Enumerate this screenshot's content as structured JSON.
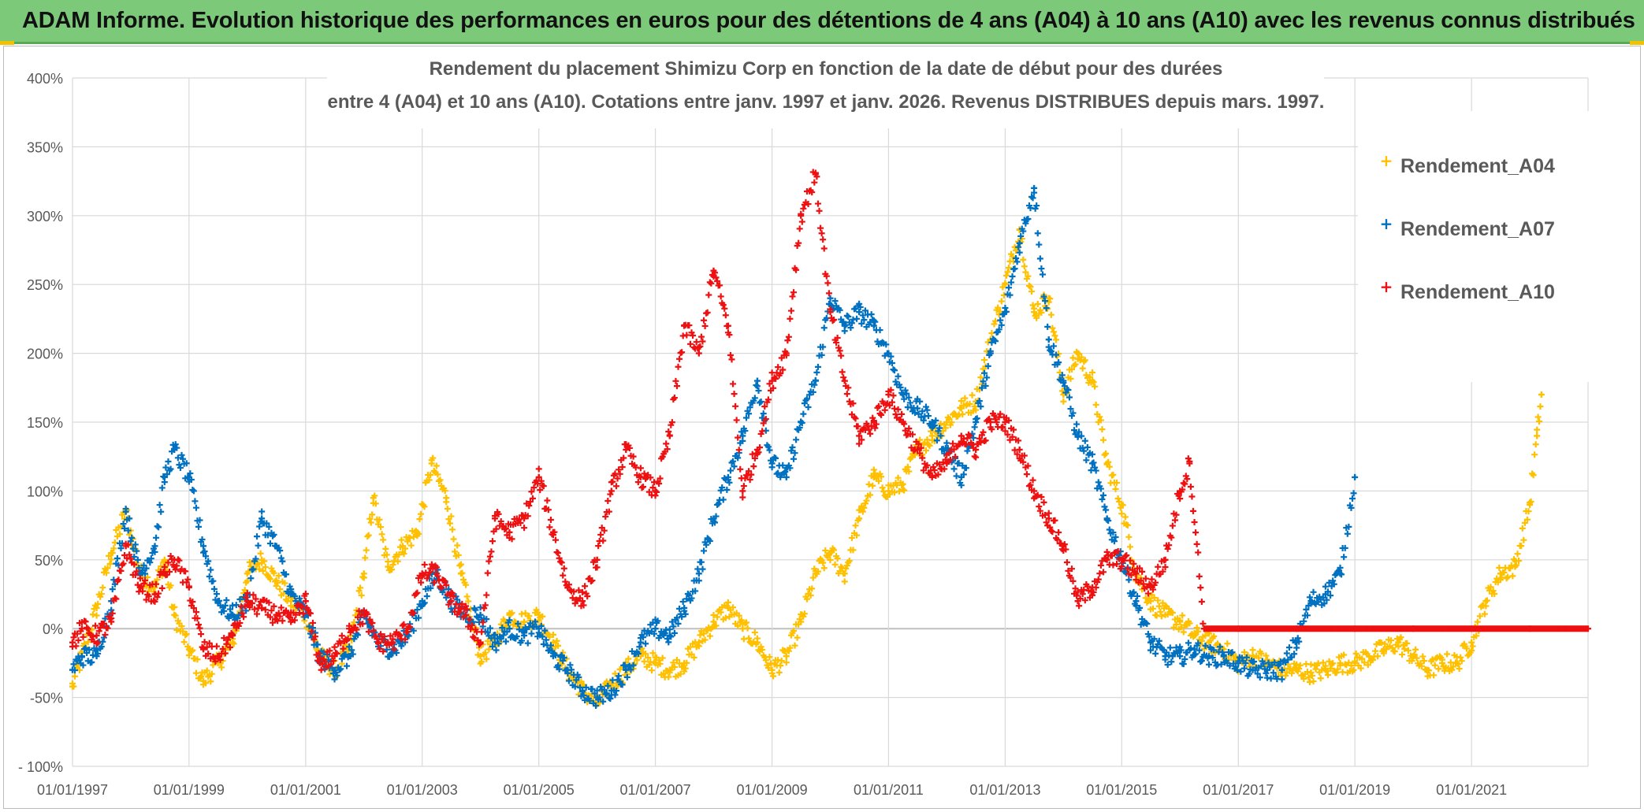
{
  "banner": {
    "title": "ADAM Informe. Evolution historique des performances en euros pour des détentions de 4 ans (A04) à 10 ans (A10) avec les revenus connus distribués"
  },
  "colors": {
    "banner_bg": "#7dc97a",
    "a04": "#ffc000",
    "a07": "#0070c0",
    "a10": "#ee1111",
    "grid": "#d9d9d9",
    "zero_line": "#bfbfbf"
  },
  "chart_data": {
    "type": "scatter",
    "title_line1": "Rendement du placement Shimizu Corp en fonction de la date de début pour des durées",
    "title_line2": "entre 4 (A04) et 10 ans (A10). Cotations entre janv. 1997 et janv. 2026. Revenus DISTRIBUES depuis mars. 1997.",
    "marker": "+",
    "grid": true,
    "legend_position": "top-right",
    "xlim": [
      "1997-01-01",
      "2023-01-01"
    ],
    "ylim": [
      -100,
      400
    ],
    "y_ticks": [
      -100,
      -50,
      0,
      50,
      100,
      150,
      200,
      250,
      300,
      350,
      400
    ],
    "y_tick_labels": [
      "- 100%",
      "-50%",
      "0%",
      "50%",
      "100%",
      "150%",
      "200%",
      "250%",
      "300%",
      "350%",
      "400%"
    ],
    "x_ticks": [
      "1997-01-01",
      "1999-01-01",
      "2001-01-01",
      "2003-01-01",
      "2005-01-01",
      "2007-01-01",
      "2009-01-01",
      "2011-01-01",
      "2013-01-01",
      "2015-01-01",
      "2017-01-01",
      "2019-01-01",
      "2021-01-01"
    ],
    "x_tick_labels": [
      "01/01/1997",
      "01/01/1999",
      "01/01/2001",
      "01/01/2003",
      "01/01/2005",
      "01/01/2007",
      "01/01/2009",
      "01/01/2011",
      "01/01/2013",
      "01/01/2015",
      "01/01/2017",
      "01/01/2019",
      "01/01/2021"
    ],
    "series": [
      {
        "name": "Rendement_A04",
        "color": "#ffc000",
        "x": [
          "1997-01-01",
          "1997-03-01",
          "1997-06-01",
          "1997-09-01",
          "1997-12-01",
          "1998-03-01",
          "1998-06-01",
          "1998-08-01",
          "1998-10-01",
          "1999-01-01",
          "1999-04-01",
          "1999-07-01",
          "1999-10-01",
          "2000-01-01",
          "2000-04-01",
          "2000-07-01",
          "2000-10-01",
          "2001-01-01",
          "2001-04-01",
          "2001-07-01",
          "2001-10-01",
          "2002-01-01",
          "2002-03-01",
          "2002-06-01",
          "2002-09-01",
          "2002-12-01",
          "2003-03-01",
          "2003-06-01",
          "2003-09-01",
          "2004-01-01",
          "2004-04-01",
          "2004-07-01",
          "2004-10-01",
          "2005-01-01",
          "2005-04-01",
          "2005-07-01",
          "2005-10-01",
          "2006-01-01",
          "2006-04-01",
          "2006-07-01",
          "2006-10-01",
          "2007-01-01",
          "2007-04-01",
          "2007-07-01",
          "2007-10-01",
          "2008-01-01",
          "2008-04-01",
          "2008-07-01",
          "2008-10-01",
          "2009-01-01",
          "2009-04-01",
          "2009-07-01",
          "2009-10-01",
          "2010-01-01",
          "2010-04-01",
          "2010-07-01",
          "2010-10-01",
          "2011-01-01",
          "2011-04-01",
          "2011-07-01",
          "2011-10-01",
          "2012-01-01",
          "2012-04-01",
          "2012-07-01",
          "2012-10-01",
          "2013-01-01",
          "2013-04-01",
          "2013-07-01",
          "2013-10-01",
          "2014-01-01",
          "2014-04-01",
          "2014-07-01",
          "2014-10-01",
          "2015-01-01",
          "2015-04-01",
          "2015-07-01",
          "2015-10-01",
          "2016-01-01",
          "2016-04-01",
          "2016-07-01",
          "2016-10-01",
          "2017-01-01",
          "2017-04-01",
          "2017-07-01",
          "2017-10-01",
          "2018-01-01",
          "2018-04-01",
          "2018-07-01",
          "2018-10-01",
          "2019-01-01",
          "2019-04-01",
          "2019-07-01",
          "2019-10-01",
          "2020-01-01",
          "2020-04-01",
          "2020-07-01",
          "2020-10-01",
          "2021-01-01",
          "2021-04-01",
          "2021-07-01",
          "2021-10-01",
          "2022-01-01",
          "2022-02-15",
          "2022-03-15"
        ],
        "y": [
          -42,
          -20,
          15,
          55,
          85,
          40,
          30,
          50,
          10,
          -15,
          -38,
          -25,
          -10,
          40,
          50,
          35,
          20,
          10,
          -20,
          -30,
          -15,
          40,
          95,
          45,
          60,
          70,
          120,
          95,
          40,
          -20,
          -10,
          10,
          5,
          10,
          -10,
          -30,
          -45,
          -55,
          -40,
          -30,
          -20,
          -25,
          -30,
          -25,
          -10,
          5,
          15,
          0,
          -10,
          -30,
          -20,
          5,
          40,
          55,
          40,
          80,
          110,
          100,
          105,
          130,
          140,
          150,
          160,
          165,
          210,
          250,
          290,
          230,
          240,
          170,
          200,
          180,
          120,
          90,
          40,
          20,
          10,
          5,
          -5,
          -10,
          -15,
          -25,
          -20,
          -25,
          -30,
          -30,
          -32,
          -30,
          -25,
          -25,
          -20,
          -15,
          -10,
          -20,
          -30,
          -25,
          -25,
          -10,
          20,
          40,
          45,
          90,
          140,
          170
        ]
      },
      {
        "name": "Rendement_A07",
        "color": "#0070c0",
        "x": [
          "1997-01-01",
          "1997-03-01",
          "1997-06-01",
          "1997-09-01",
          "1997-12-01",
          "1998-03-01",
          "1998-06-01",
          "1998-08-01",
          "1998-10-01",
          "1999-01-01",
          "1999-04-01",
          "1999-07-01",
          "1999-10-01",
          "2000-01-01",
          "2000-04-01",
          "2000-07-01",
          "2000-10-01",
          "2001-01-01",
          "2001-04-01",
          "2001-07-01",
          "2001-10-01",
          "2002-01-01",
          "2002-04-01",
          "2002-07-01",
          "2002-10-01",
          "2003-01-01",
          "2003-04-01",
          "2003-07-01",
          "2003-10-01",
          "2004-01-01",
          "2004-04-01",
          "2004-07-01",
          "2004-10-01",
          "2005-01-01",
          "2005-04-01",
          "2005-07-01",
          "2005-10-01",
          "2006-01-01",
          "2006-04-01",
          "2006-07-01",
          "2006-10-01",
          "2007-01-01",
          "2007-04-01",
          "2007-07-01",
          "2007-10-01",
          "2008-01-01",
          "2008-04-01",
          "2008-07-01",
          "2008-10-01",
          "2009-01-01",
          "2009-04-01",
          "2009-07-01",
          "2009-10-01",
          "2010-01-01",
          "2010-04-01",
          "2010-07-01",
          "2010-10-01",
          "2011-01-01",
          "2011-04-01",
          "2011-07-01",
          "2011-10-01",
          "2012-01-01",
          "2012-04-01",
          "2012-07-01",
          "2012-10-01",
          "2013-01-01",
          "2013-04-01",
          "2013-07-01",
          "2013-10-01",
          "2014-01-01",
          "2014-04-01",
          "2014-07-01",
          "2014-10-01",
          "2015-01-01",
          "2015-04-01",
          "2015-07-01",
          "2015-10-01",
          "2016-01-01",
          "2016-04-01",
          "2016-07-01",
          "2016-10-01",
          "2017-01-01",
          "2017-04-01",
          "2017-07-01",
          "2017-10-01",
          "2018-01-01",
          "2018-04-01",
          "2018-07-01",
          "2018-10-01",
          "2019-01-01"
        ],
        "y": [
          -30,
          -20,
          -20,
          20,
          85,
          40,
          60,
          110,
          130,
          110,
          60,
          20,
          10,
          20,
          80,
          60,
          25,
          10,
          -20,
          -30,
          -20,
          10,
          -10,
          -15,
          -5,
          20,
          40,
          20,
          10,
          10,
          -10,
          0,
          -5,
          0,
          -20,
          -30,
          -45,
          -50,
          -45,
          -30,
          -10,
          0,
          -5,
          15,
          40,
          80,
          110,
          140,
          180,
          120,
          110,
          150,
          180,
          240,
          220,
          230,
          220,
          200,
          170,
          160,
          150,
          130,
          110,
          150,
          200,
          230,
          280,
          320,
          210,
          180,
          140,
          120,
          80,
          50,
          20,
          -10,
          -20,
          -20,
          -15,
          -20,
          -20,
          -25,
          -30,
          -30,
          -30,
          -10,
          20,
          25,
          40,
          110
        ]
      },
      {
        "name": "Rendement_A10",
        "color": "#ee1111",
        "x": [
          "1997-01-01",
          "1997-03-01",
          "1997-06-01",
          "1997-09-01",
          "1997-12-01",
          "1998-03-01",
          "1998-06-01",
          "1998-08-01",
          "1998-10-01",
          "1999-01-01",
          "1999-04-01",
          "1999-07-01",
          "1999-10-01",
          "2000-01-01",
          "2000-04-01",
          "2000-07-01",
          "2000-10-01",
          "2001-01-01",
          "2001-04-01",
          "2001-07-01",
          "2001-10-01",
          "2002-01-01",
          "2002-04-01",
          "2002-07-01",
          "2002-10-01",
          "2003-01-01",
          "2003-04-01",
          "2003-07-01",
          "2003-10-01",
          "2004-01-01",
          "2004-04-01",
          "2004-07-01",
          "2004-10-01",
          "2005-01-01",
          "2005-04-01",
          "2005-07-01",
          "2005-10-01",
          "2006-01-01",
          "2006-04-01",
          "2006-07-01",
          "2006-10-01",
          "2007-01-01",
          "2007-04-01",
          "2007-07-01",
          "2007-10-01",
          "2008-01-01",
          "2008-04-01",
          "2008-07-01",
          "2008-10-01",
          "2009-01-01",
          "2009-04-01",
          "2009-07-01",
          "2009-10-01",
          "2010-01-01",
          "2010-04-01",
          "2010-07-01",
          "2010-10-01",
          "2011-01-01",
          "2011-04-01",
          "2011-07-01",
          "2011-10-01",
          "2012-01-01",
          "2012-04-01",
          "2012-07-01",
          "2012-10-01",
          "2013-01-01",
          "2013-04-01",
          "2013-07-01",
          "2013-10-01",
          "2014-01-01",
          "2014-04-01",
          "2014-07-01",
          "2014-10-01",
          "2015-01-01",
          "2015-04-01",
          "2015-07-01",
          "2015-10-01",
          "2016-01-01",
          "2016-03-01",
          "2016-06-01",
          "2017-01-01",
          "2018-01-01",
          "2019-01-01",
          "2020-01-01",
          "2021-01-01",
          "2022-01-01",
          "2023-01-01"
        ],
        "y": [
          -10,
          0,
          -5,
          5,
          60,
          30,
          25,
          40,
          50,
          30,
          -15,
          -20,
          -5,
          20,
          15,
          10,
          5,
          20,
          -25,
          -20,
          0,
          10,
          -10,
          -10,
          0,
          40,
          40,
          20,
          10,
          -10,
          80,
          70,
          80,
          110,
          70,
          30,
          20,
          50,
          100,
          130,
          110,
          100,
          140,
          220,
          200,
          260,
          220,
          100,
          130,
          180,
          200,
          300,
          330,
          230,
          180,
          140,
          150,
          170,
          150,
          130,
          110,
          120,
          140,
          130,
          150,
          150,
          130,
          100,
          80,
          60,
          20,
          30,
          50,
          50,
          40,
          30,
          50,
          100,
          120,
          0,
          0,
          0,
          0,
          0,
          0,
          0,
          0
        ]
      }
    ]
  }
}
